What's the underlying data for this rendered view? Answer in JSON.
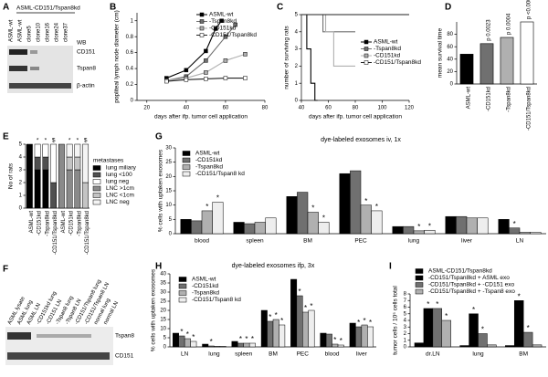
{
  "blot_a": {
    "label": "A",
    "header": "ASML-CD151/Tspan8kd",
    "lanes": [
      "ASML-wt",
      "ASML-wt",
      "clone5",
      "clone10",
      "clone16",
      "clone24",
      "clone37"
    ],
    "wb": "WB",
    "rows": [
      "CD151",
      "Tspan8",
      "β-actin"
    ]
  },
  "blot_f": {
    "label": "F",
    "lanes": [
      "ASML lysate",
      "ASML lung",
      "ASML LN",
      "-CD151kd lung",
      "-CD151 LN",
      "-Tspan8 lung",
      "-Tspan8 LN",
      "-CD151/Tspan8 lung",
      "-CD151/Tspan8 LN",
      "normal lung",
      "normal LN"
    ],
    "rows": [
      "Tspan8",
      "CD151"
    ]
  },
  "chart_data": [
    {
      "type": "line",
      "label": "B",
      "ylabel": "popliteal lymph node diameter (cm)",
      "xlabel": "days after ifp. tumor cell application",
      "xlim": [
        15,
        80
      ],
      "xticks": [
        20,
        40,
        60,
        80
      ],
      "ylim": [
        0,
        1.1
      ],
      "yticks": [
        0,
        0.2,
        0.4,
        0.6,
        0.8,
        1
      ],
      "markers": true,
      "series": [
        {
          "name": "ASML-wt",
          "color": "#000000",
          "x": [
            30,
            40,
            50,
            55,
            58
          ],
          "values": [
            0.28,
            0.38,
            0.62,
            0.9,
            1.0
          ]
        },
        {
          "name": "-Tspan8kd",
          "color": "#707070",
          "x": [
            30,
            40,
            50,
            60,
            65
          ],
          "values": [
            0.25,
            0.3,
            0.5,
            0.8,
            0.95
          ]
        },
        {
          "name": "-CD151kd",
          "color": "#b0b0b0",
          "x": [
            30,
            40,
            50,
            60,
            70
          ],
          "values": [
            0.25,
            0.28,
            0.35,
            0.5,
            0.58
          ]
        },
        {
          "name": "-CD151/Tspan8kd",
          "color": "#ffffff",
          "x": [
            30,
            40,
            50,
            60,
            70
          ],
          "values": [
            0.24,
            0.26,
            0.27,
            0.28,
            0.28
          ]
        }
      ]
    },
    {
      "type": "line",
      "label": "C",
      "ylabel": "number of surviving rats",
      "xlabel": "days after ifp. tumor cell application",
      "xlim": [
        40,
        120
      ],
      "xticks": [
        40,
        60,
        80,
        100,
        120
      ],
      "ylim": [
        0,
        5
      ],
      "yticks": [
        0,
        1,
        2,
        3,
        4,
        5
      ],
      "markers": false,
      "series": [
        {
          "name": "ASML-wt",
          "color": "#000000",
          "x": [
            40,
            44,
            44,
            47,
            47,
            50,
            50,
            52
          ],
          "values": [
            5,
            5,
            3,
            3,
            1,
            1,
            0,
            0
          ]
        },
        {
          "name": "-Tspan8kd",
          "color": "#707070",
          "x": [
            40,
            56,
            56,
            80
          ],
          "values": [
            5,
            5,
            4,
            4
          ]
        },
        {
          "name": "-CD151kd",
          "color": "#b0b0b0",
          "x": [
            40,
            58,
            58,
            64,
            64,
            80
          ],
          "values": [
            5,
            5,
            4,
            4,
            2,
            2
          ]
        },
        {
          "name": "-CD151/Tspan8kd",
          "color": "#ffffff",
          "x": [
            40,
            120
          ],
          "values": [
            5,
            5
          ]
        }
      ]
    },
    {
      "type": "bar",
      "label": "D",
      "ylabel": "mean survival time",
      "categories": [
        "ASML-wt",
        "-CD151kd",
        "-Tspan8kd",
        "-CD151/Tspan8kd"
      ],
      "values": [
        48,
        65,
        75,
        100
      ],
      "colors": [
        "#000000",
        "#707070",
        "#b0b0b0",
        "#ffffff"
      ],
      "annotations": [
        null,
        "p 0.0023",
        "p 0.0004",
        "p <0.0001"
      ],
      "ylim": [
        0,
        100
      ],
      "yticks": [
        0,
        20,
        40,
        60,
        80
      ]
    },
    {
      "type": "stacked",
      "label": "E",
      "ylabel": "No of rats",
      "legend_title": "metastases",
      "categories": [
        "ASML-wt",
        "-CD151kd",
        "-Tspan8kd",
        "-CD151/Tspan8kd",
        "ASML-wt",
        "-CD151kd",
        "-Tspan8kd",
        "-CD151/Tspan8kd"
      ],
      "markers": [
        null,
        "*",
        "*",
        "$",
        null,
        "*",
        "*",
        "$"
      ],
      "ylim": [
        0,
        5
      ],
      "yticks": [
        0,
        1,
        2,
        3,
        4,
        5
      ],
      "series": [
        {
          "name": "lung miliary",
          "color": "#000000",
          "values": [
            5,
            3,
            3,
            0,
            0,
            0,
            0,
            0
          ]
        },
        {
          "name": "lung <100",
          "color": "#505050",
          "values": [
            0,
            1,
            1,
            2,
            0,
            0,
            0,
            0
          ]
        },
        {
          "name": "lung neg",
          "color": "#ffffff",
          "values": [
            0,
            1,
            1,
            3,
            0,
            0,
            0,
            0
          ]
        },
        {
          "name": "LNC >1cm",
          "color": "#8a8a8a",
          "values": [
            0,
            0,
            0,
            0,
            5,
            3,
            3,
            0
          ]
        },
        {
          "name": "LNC <1cm",
          "color": "#c4c4c4",
          "values": [
            0,
            0,
            0,
            0,
            0,
            1,
            1,
            2
          ]
        },
        {
          "name": "LNC neg",
          "color": "#f4f4f4",
          "values": [
            0,
            0,
            0,
            0,
            0,
            1,
            1,
            3
          ]
        }
      ]
    },
    {
      "type": "grouped",
      "label": "G",
      "title": "dye-labeled exosomes iv, 1x",
      "ylabel": "% cells with uptaken exosomes",
      "categories": [
        "blood",
        "spleen",
        "BM",
        "PEC",
        "lung",
        "liver",
        "LN"
      ],
      "ylim": [
        0,
        30
      ],
      "yticks": [
        0,
        5,
        10,
        15,
        20,
        25,
        30
      ],
      "series": [
        {
          "name": "ASML-wt",
          "color": "#000000",
          "values": [
            5,
            4,
            13,
            21,
            2.5,
            6,
            5
          ],
          "markers": [
            null,
            null,
            null,
            null,
            null,
            null,
            null
          ]
        },
        {
          "name": "-CD151kd",
          "color": "#707070",
          "values": [
            4.5,
            3.5,
            14.5,
            22,
            2.5,
            6,
            2
          ],
          "markers": [
            null,
            null,
            null,
            null,
            null,
            null,
            "*"
          ]
        },
        {
          "name": "-Tspan8kd",
          "color": "#b0b0b0",
          "values": [
            8,
            4,
            7.5,
            10,
            1,
            5.5,
            0.5
          ],
          "markers": [
            "*",
            null,
            "*",
            "*",
            "*",
            null,
            null
          ]
        },
        {
          "name": "-CD151/Tspan8 kd",
          "color": "#eeeeee",
          "values": [
            11,
            5.5,
            4,
            8,
            1.2,
            5.5,
            0.5
          ],
          "markers": [
            "*",
            null,
            "*",
            "*",
            "*",
            null,
            null
          ]
        }
      ]
    },
    {
      "type": "grouped",
      "label": "H",
      "title": "dye-labeled exosomes ifp, 3x",
      "ylabel": "% cells with uptaken exosomes",
      "categories": [
        "LN",
        "lung",
        "spleen",
        "BM",
        "PEC",
        "blood",
        "liver"
      ],
      "ylim": [
        0,
        40
      ],
      "yticks": [
        0,
        5,
        10,
        15,
        20,
        25,
        30,
        35,
        40
      ],
      "series": [
        {
          "name": "ASML-wt",
          "color": "#000000",
          "values": [
            7.5,
            1.5,
            3,
            20,
            37,
            7.5,
            13
          ],
          "markers": [
            null,
            null,
            null,
            null,
            null,
            null,
            null
          ]
        },
        {
          "name": "-CD151kd",
          "color": "#707070",
          "values": [
            6,
            0.5,
            2,
            14,
            28,
            7,
            11
          ],
          "markers": [
            "*",
            "*",
            "*",
            "*",
            "*",
            null,
            "*"
          ]
        },
        {
          "name": "-Tspan8kd",
          "color": "#b0b0b0",
          "values": [
            4.5,
            0.3,
            2,
            15,
            19,
            1.5,
            12
          ],
          "markers": [
            "*",
            null,
            "*",
            "*",
            "*",
            "*",
            "*"
          ]
        },
        {
          "name": "-CD151/Tspan8 kd",
          "color": "#eeeeee",
          "values": [
            3,
            0.3,
            2,
            12,
            20,
            1,
            11
          ],
          "markers": [
            "*",
            null,
            "*",
            "*",
            "*",
            "*",
            "*"
          ]
        }
      ]
    },
    {
      "type": "grouped",
      "label": "I",
      "ylabel": "tumor cells / 10⁵ cells total",
      "categories": [
        "dr.LN",
        "lung",
        "BM"
      ],
      "ylim": [
        0,
        8
      ],
      "yticks": [
        0,
        1,
        2,
        3,
        4,
        5,
        6,
        7,
        8
      ],
      "series": [
        {
          "name": "ASML-CD151/Tspan8kd",
          "color": "#000000",
          "values": [
            0.6,
            0.2,
            0.2
          ],
          "markers": [
            null,
            null,
            null
          ]
        },
        {
          "name": "-CD151/Tspan8kd + ASML exo",
          "color": "#000000",
          "values": [
            5.8,
            5,
            7
          ],
          "markers": [
            "*",
            "*",
            "*"
          ]
        },
        {
          "name": "-CD151/Tspan8kd + -CD151 exo",
          "color": "#707070",
          "values": [
            5.8,
            2,
            2.2
          ],
          "markers": [
            "*",
            "*",
            "*"
          ]
        },
        {
          "name": "-CD151/Tspan8kd + -Tspan8 exo",
          "color": "#b0b0b0",
          "values": [
            4,
            0.3,
            0.3
          ],
          "markers": [
            "*",
            null,
            null
          ]
        }
      ]
    }
  ]
}
